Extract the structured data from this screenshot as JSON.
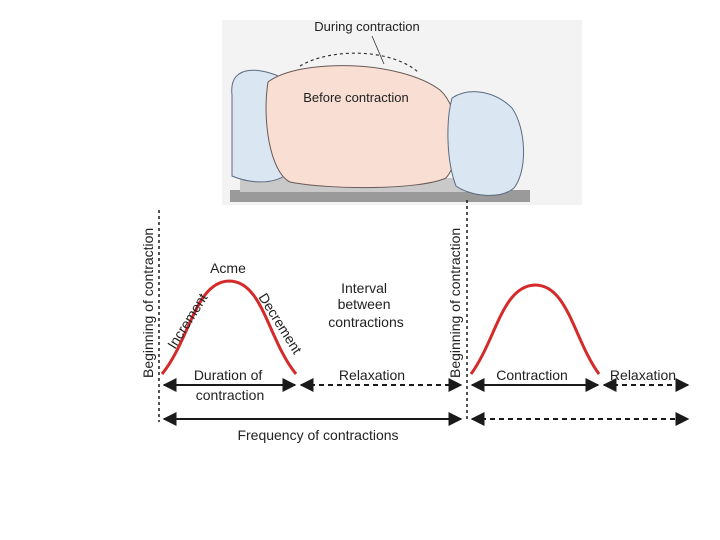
{
  "illustration": {
    "during_label": "During contraction",
    "before_label": "Before contraction"
  },
  "timeline": {
    "beginning_left": "Beginning of contraction",
    "beginning_right": "Beginning of contraction",
    "acme": "Acme",
    "increment": "Increment",
    "decrement": "Decrement",
    "interval_lines": [
      "Interval",
      "between",
      "contractions"
    ],
    "duration_lines": [
      "Duration of",
      "contraction"
    ],
    "relaxation_1": "Relaxation",
    "contraction": "Contraction",
    "relaxation_2": "Relaxation",
    "frequency": "Frequency of contractions"
  },
  "colors": {
    "curve": "#d42a2a",
    "belly": "#f9ded3",
    "sheet": "#dbe6f3",
    "bed": "#9a9a9a",
    "line": "#1a1a1a"
  }
}
